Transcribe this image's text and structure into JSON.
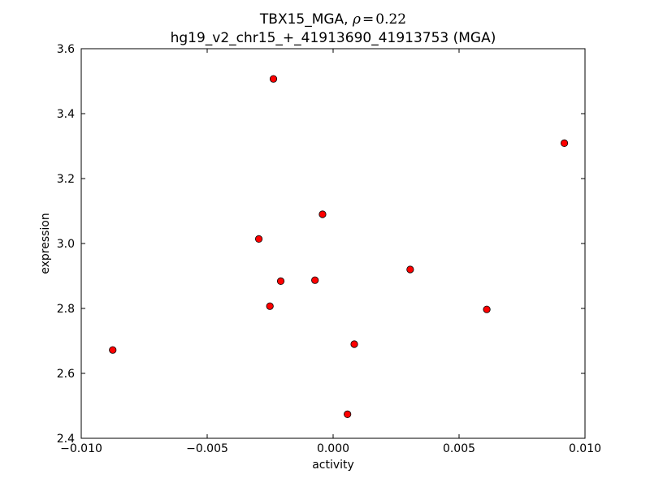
{
  "chart_data": {
    "type": "scatter",
    "title": {
      "prefix": "TBX15_MGA, ",
      "rho_symbol": "ρ",
      "rho_equals": "=",
      "rho_value": "0.22",
      "subtitle": "hg19_v2_chr15_+_41913690_41913753 (MGA)"
    },
    "xlabel": "activity",
    "ylabel": "expression",
    "xlim": [
      -0.01,
      0.01
    ],
    "ylim": [
      2.4,
      3.6
    ],
    "xticks": [
      {
        "value": -0.01,
        "label": "−0.010"
      },
      {
        "value": -0.005,
        "label": "−0.005"
      },
      {
        "value": 0.0,
        "label": "0.000"
      },
      {
        "value": 0.005,
        "label": "0.005"
      },
      {
        "value": 0.01,
        "label": "0.010"
      }
    ],
    "yticks": [
      {
        "value": 2.4,
        "label": "2.4"
      },
      {
        "value": 2.6,
        "label": "2.6"
      },
      {
        "value": 2.8,
        "label": "2.8"
      },
      {
        "value": 3.0,
        "label": "3.0"
      },
      {
        "value": 3.2,
        "label": "3.2"
      },
      {
        "value": 3.4,
        "label": "3.4"
      },
      {
        "value": 3.6,
        "label": "3.6"
      }
    ],
    "grid": false,
    "marker_color": "#ff0000",
    "points": [
      {
        "x": -0.00875,
        "y": 2.672
      },
      {
        "x": -0.00237,
        "y": 3.507
      },
      {
        "x": -0.00295,
        "y": 3.014
      },
      {
        "x": -0.00208,
        "y": 2.884
      },
      {
        "x": -0.00251,
        "y": 2.807
      },
      {
        "x": -0.00072,
        "y": 2.887
      },
      {
        "x": -0.00042,
        "y": 3.09
      },
      {
        "x": 0.00057,
        "y": 2.474
      },
      {
        "x": 0.00084,
        "y": 2.69
      },
      {
        "x": 0.00306,
        "y": 2.92
      },
      {
        "x": 0.0061,
        "y": 2.797
      },
      {
        "x": 0.00918,
        "y": 3.309
      }
    ]
  }
}
